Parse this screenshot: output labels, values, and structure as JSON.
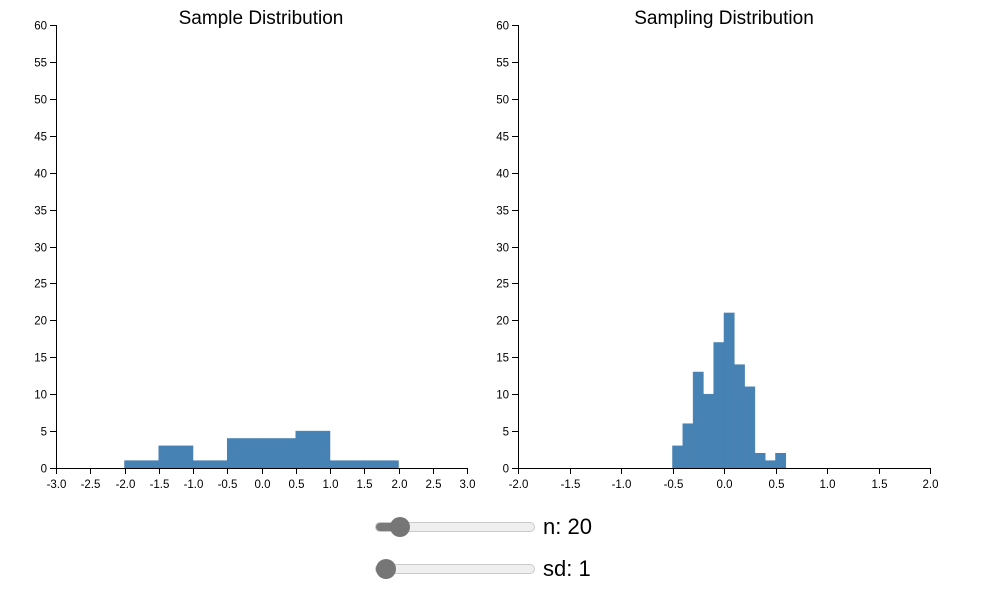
{
  "chart_data": [
    {
      "type": "bar",
      "title": "Sample Distribution",
      "xlabel": "",
      "ylabel": "",
      "xlim": [
        -3.0,
        3.0
      ],
      "ylim": [
        0,
        60
      ],
      "x_ticks": [
        "-3.0",
        "-2.5",
        "-2.0",
        "-1.5",
        "-1.0",
        "-0.5",
        "0.0",
        "0.5",
        "1.0",
        "1.5",
        "2.0",
        "2.5",
        "3.0"
      ],
      "y_ticks": [
        "0",
        "5",
        "10",
        "15",
        "20",
        "25",
        "30",
        "35",
        "40",
        "45",
        "50",
        "55",
        "60"
      ],
      "bin_width": 0.5,
      "bins": [
        {
          "x0": -2.0,
          "x1": -1.5,
          "count": 1
        },
        {
          "x0": -1.5,
          "x1": -1.0,
          "count": 3
        },
        {
          "x0": -1.0,
          "x1": -0.5,
          "count": 1
        },
        {
          "x0": -0.5,
          "x1": 0.0,
          "count": 4
        },
        {
          "x0": 0.0,
          "x1": 0.5,
          "count": 4
        },
        {
          "x0": 0.5,
          "x1": 1.0,
          "count": 5
        },
        {
          "x0": 1.0,
          "x1": 1.5,
          "count": 1
        },
        {
          "x0": 1.5,
          "x1": 2.0,
          "count": 1
        }
      ]
    },
    {
      "type": "bar",
      "title": "Sampling Distribution",
      "xlabel": "",
      "ylabel": "",
      "xlim": [
        -2.0,
        2.0
      ],
      "ylim": [
        0,
        60
      ],
      "x_ticks": [
        "-2.0",
        "-1.5",
        "-1.0",
        "-0.5",
        "0.0",
        "0.5",
        "1.0",
        "1.5",
        "2.0"
      ],
      "y_ticks": [
        "0",
        "5",
        "10",
        "15",
        "20",
        "25",
        "30",
        "35",
        "40",
        "45",
        "50",
        "55",
        "60"
      ],
      "bin_width": 0.1,
      "bins": [
        {
          "x0": -0.5,
          "x1": -0.4,
          "count": 3
        },
        {
          "x0": -0.4,
          "x1": -0.3,
          "count": 6
        },
        {
          "x0": -0.3,
          "x1": -0.2,
          "count": 13
        },
        {
          "x0": -0.2,
          "x1": -0.1,
          "count": 10
        },
        {
          "x0": -0.1,
          "x1": 0.0,
          "count": 17
        },
        {
          "x0": 0.0,
          "x1": 0.1,
          "count": 21
        },
        {
          "x0": 0.1,
          "x1": 0.2,
          "count": 14
        },
        {
          "x0": 0.2,
          "x1": 0.3,
          "count": 11
        },
        {
          "x0": 0.3,
          "x1": 0.4,
          "count": 2
        },
        {
          "x0": 0.4,
          "x1": 0.5,
          "count": 1
        },
        {
          "x0": 0.5,
          "x1": 0.6,
          "count": 2
        }
      ]
    }
  ],
  "controls": {
    "n": {
      "label": "n: 20",
      "value": 20,
      "fraction": 0.1
    },
    "sd": {
      "label": "sd: 1",
      "value": 1,
      "fraction": 0.0
    }
  },
  "colors": {
    "bar": "#4682b4",
    "axis": "#000000",
    "slider_thumb": "#767676"
  }
}
